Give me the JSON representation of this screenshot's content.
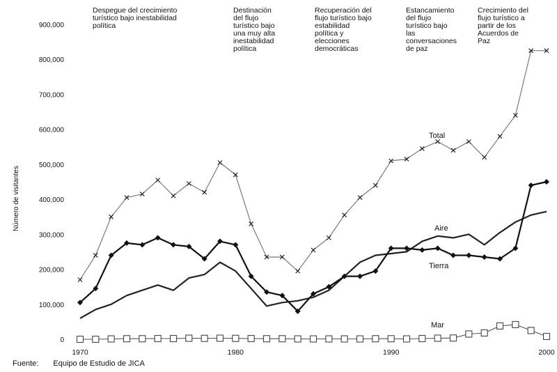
{
  "chart_data": {
    "type": "line",
    "ylabel": "Número de visitantes",
    "ylim": [
      0,
      900000
    ],
    "x_range": [
      1969,
      2001
    ],
    "y_ticks": [
      "0",
      "100,000",
      "200,000",
      "300,000",
      "400,000",
      "500,000",
      "600,000",
      "700,000",
      "800,000",
      "900,000"
    ],
    "y_tick_values": [
      0,
      100000,
      200000,
      300000,
      400000,
      500000,
      600000,
      700000,
      800000,
      900000
    ],
    "x_ticks": [
      "1970",
      "1980",
      "1990",
      "2000"
    ],
    "x_tick_values": [
      1970,
      1980,
      1990,
      2000
    ],
    "grid": false,
    "periods": [
      {
        "label": "Despegue del crecimiento\nturístico bajo inestabilidad\npolítica"
      },
      {
        "label": "Destinación\ndel flujo\nturístico bajo\nuna muy alta\ninestabilidad\npolítica"
      },
      {
        "label": "Recuperación del\nflujo turístico bajo\nestabilidad\npolítica y\nelecciones\ndemocráticas"
      },
      {
        "label": "Estancamiento\ndel flujo\nturístico bajo\nlas\nconversaciones\nde paz"
      },
      {
        "label": "Crecimiento del\nflujo turístico a\npartir de los\nAcuerdos de\nPaz"
      }
    ],
    "x": [
      1970,
      1971,
      1972,
      1973,
      1974,
      1975,
      1976,
      1977,
      1978,
      1979,
      1980,
      1981,
      1982,
      1983,
      1984,
      1985,
      1986,
      1987,
      1988,
      1989,
      1990,
      1991,
      1992,
      1993,
      1994,
      1995,
      1996,
      1997,
      1998,
      1999,
      2000
    ],
    "series": [
      {
        "name": "Total",
        "marker": "cross",
        "values": [
          170000,
          240000,
          350000,
          405000,
          415000,
          455000,
          410000,
          445000,
          420000,
          505000,
          470000,
          330000,
          235000,
          235000,
          195000,
          255000,
          290000,
          355000,
          405000,
          440000,
          510000,
          515000,
          545000,
          565000,
          540000,
          565000,
          520000,
          580000,
          640000,
          825000,
          825000
        ]
      },
      {
        "name": "Aire",
        "marker": "none",
        "values": [
          60000,
          85000,
          100000,
          125000,
          140000,
          155000,
          140000,
          175000,
          185000,
          220000,
          195000,
          145000,
          95000,
          105000,
          110000,
          120000,
          140000,
          180000,
          220000,
          240000,
          245000,
          250000,
          280000,
          295000,
          290000,
          300000,
          270000,
          305000,
          335000,
          355000,
          365000
        ]
      },
      {
        "name": "Tierra",
        "marker": "diamond",
        "values": [
          105000,
          145000,
          240000,
          275000,
          270000,
          290000,
          270000,
          265000,
          230000,
          280000,
          270000,
          180000,
          135000,
          125000,
          80000,
          130000,
          150000,
          180000,
          180000,
          195000,
          260000,
          260000,
          255000,
          260000,
          240000,
          240000,
          235000,
          230000,
          260000,
          440000,
          450000
        ]
      },
      {
        "name": "Mar",
        "marker": "square",
        "values": [
          0,
          0,
          1000,
          1500,
          1500,
          2000,
          2000,
          3000,
          2500,
          3000,
          2500,
          2000,
          1500,
          1500,
          1000,
          1000,
          1000,
          1000,
          1000,
          1500,
          1500,
          1000,
          2000,
          3000,
          3500,
          15000,
          18000,
          38000,
          42000,
          25000,
          8000
        ]
      }
    ],
    "source_label": "Fuente:",
    "source_text": "Equipo de Estudio de JICA"
  }
}
